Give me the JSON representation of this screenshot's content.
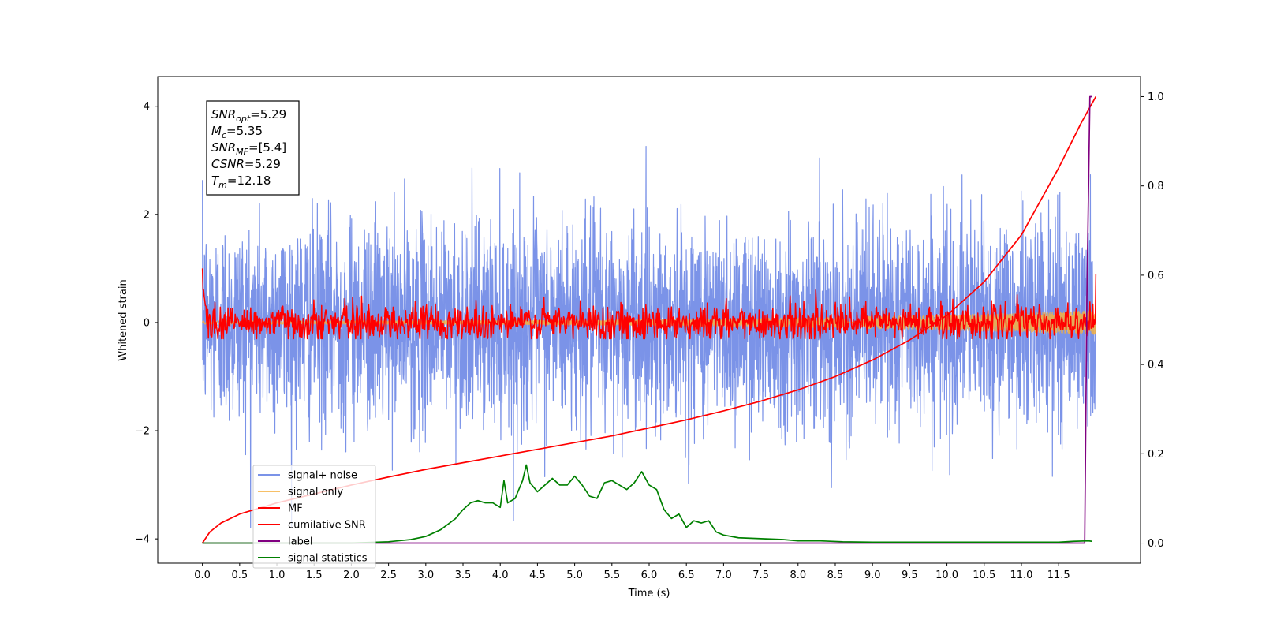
{
  "chart_data": {
    "type": "line",
    "title": "",
    "xlabel": "Time (s)",
    "ylabel": "Whitened strain",
    "xlim": [
      -0.6,
      12.6
    ],
    "ylim": [
      -4.45,
      4.55
    ],
    "y2lim": [
      -0.045,
      1.045
    ],
    "x_ticks": [
      0.0,
      0.5,
      1.0,
      1.5,
      2.0,
      2.5,
      3.0,
      3.5,
      4.0,
      4.5,
      5.0,
      5.5,
      6.0,
      6.5,
      7.0,
      7.5,
      8.0,
      8.5,
      9.0,
      9.5,
      10.0,
      10.5,
      11.0,
      11.5
    ],
    "x_tick_labels": [
      "0.0",
      "0.5",
      "1.0",
      "1.5",
      "2.0",
      "2.5",
      "3.0",
      "3.5",
      "4.0",
      "4.5",
      "5.0",
      "5.5",
      "6.0",
      "6.5",
      "7.0",
      "7.5",
      "8.0",
      "8.5",
      "9.0",
      "9.5",
      "10.0",
      "10.5",
      "11.0",
      "11.5"
    ],
    "y_ticks": [
      -4,
      -2,
      0,
      2,
      4
    ],
    "y_tick_labels": [
      "−4",
      "−2",
      "0",
      "2",
      "4"
    ],
    "y2_ticks": [
      0.0,
      0.2,
      0.4,
      0.6,
      0.8,
      1.0
    ],
    "y2_tick_labels": [
      "0.0",
      "0.2",
      "0.4",
      "0.6",
      "0.8",
      "1.0"
    ],
    "grid": false,
    "legend_position": "lower-left",
    "annotation": {
      "lines": [
        {
          "base": "SNR",
          "sub": "opt",
          "value": "=5.29"
        },
        {
          "base": "M",
          "sub": "c",
          "value": "=5.35"
        },
        {
          "base": "SNR",
          "sub": "MF",
          "value": "=[5.4]"
        },
        {
          "base": "CSNR",
          "sub": "",
          "value": "=5.29"
        },
        {
          "base": "T",
          "sub": "m",
          "value": "=12.18"
        }
      ]
    },
    "series": [
      {
        "name": "signal+ noise",
        "color": "#7b93e8",
        "axis": "left",
        "kind": "noise",
        "t_start": 0.0,
        "t_end": 12.0,
        "sigma": 0.95,
        "peak_range": [
          -3.8,
          3.5
        ]
      },
      {
        "name": "signal only",
        "color": "#f5b041",
        "axis": "left",
        "kind": "chirp",
        "t_start": 0.0,
        "t_end": 12.0,
        "amp_start": 0.03,
        "amp_end": 0.22
      },
      {
        "name": "MF",
        "color": "#ff0000",
        "axis": "left",
        "kind": "noise",
        "t_start": 0.0,
        "t_end": 12.0,
        "sigma": 0.17,
        "start_value": 1.0,
        "end_value": 0.9
      },
      {
        "name": "cumilative SNR",
        "color": "#ff0000",
        "axis": "right",
        "x": [
          0.0,
          0.1,
          0.25,
          0.5,
          1.0,
          1.5,
          2.0,
          2.5,
          3.0,
          3.5,
          4.0,
          4.5,
          5.0,
          5.5,
          6.0,
          6.5,
          7.0,
          7.5,
          8.0,
          8.5,
          9.0,
          9.5,
          10.0,
          10.5,
          11.0,
          11.5,
          11.8,
          12.0
        ],
        "y": [
          0.0,
          0.025,
          0.045,
          0.065,
          0.09,
          0.11,
          0.13,
          0.148,
          0.165,
          0.18,
          0.195,
          0.21,
          0.225,
          0.24,
          0.258,
          0.276,
          0.296,
          0.318,
          0.343,
          0.373,
          0.41,
          0.455,
          0.51,
          0.585,
          0.69,
          0.84,
          0.94,
          1.0
        ]
      },
      {
        "name": "label",
        "color": "#800080",
        "axis": "right",
        "x": [
          0.0,
          11.85,
          11.88,
          11.92,
          11.95
        ],
        "y": [
          0.0,
          0.0,
          0.55,
          1.0,
          1.0
        ]
      },
      {
        "name": "signal statistics",
        "color": "#008000",
        "axis": "right",
        "x": [
          0.0,
          2.0,
          2.5,
          2.8,
          3.0,
          3.2,
          3.4,
          3.5,
          3.6,
          3.7,
          3.8,
          3.9,
          4.0,
          4.05,
          4.1,
          4.2,
          4.3,
          4.35,
          4.4,
          4.5,
          4.6,
          4.7,
          4.8,
          4.9,
          5.0,
          5.1,
          5.2,
          5.3,
          5.4,
          5.5,
          5.6,
          5.7,
          5.8,
          5.9,
          6.0,
          6.1,
          6.2,
          6.3,
          6.4,
          6.5,
          6.6,
          6.7,
          6.8,
          6.9,
          7.0,
          7.2,
          7.5,
          7.8,
          8.0,
          8.3,
          8.6,
          9.0,
          10.0,
          11.0,
          11.5,
          11.7,
          11.9,
          11.95
        ],
        "y": [
          0.0,
          0.0,
          0.003,
          0.008,
          0.015,
          0.03,
          0.055,
          0.075,
          0.09,
          0.095,
          0.09,
          0.09,
          0.08,
          0.14,
          0.09,
          0.1,
          0.14,
          0.175,
          0.135,
          0.115,
          0.13,
          0.145,
          0.13,
          0.13,
          0.15,
          0.13,
          0.105,
          0.1,
          0.135,
          0.14,
          0.13,
          0.12,
          0.135,
          0.16,
          0.13,
          0.12,
          0.075,
          0.055,
          0.065,
          0.035,
          0.05,
          0.045,
          0.05,
          0.025,
          0.018,
          0.012,
          0.01,
          0.008,
          0.005,
          0.005,
          0.003,
          0.002,
          0.002,
          0.002,
          0.002,
          0.004,
          0.005,
          0.004
        ]
      }
    ]
  }
}
